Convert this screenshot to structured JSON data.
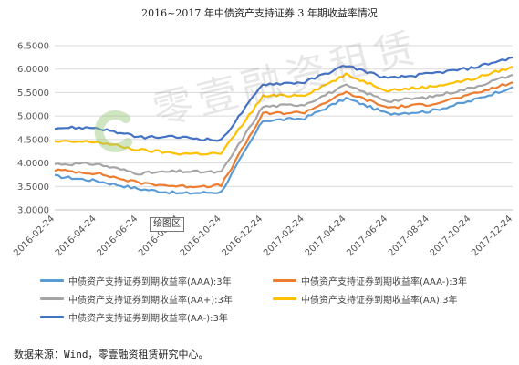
{
  "chart_data": {
    "type": "line",
    "title": "2016~2017 年中债资产支持证券 3 年期收益率情况",
    "ylim": [
      3.0,
      6.5
    ],
    "yticks": [
      "3.0000",
      "3.5000",
      "4.0000",
      "4.5000",
      "5.0000",
      "5.5000",
      "6.0000",
      "6.5000"
    ],
    "x": [
      "2016-02-24",
      "2016-04-24",
      "2016-06-24",
      "2016-08-24",
      "2016-10-24",
      "2016-12-24",
      "2017-02-24",
      "2017-04-24",
      "2017-06-24",
      "2017-08-24",
      "2017-10-24",
      "2017-12-24"
    ],
    "xtick_labels": [
      "2016-02-24",
      "2016-04-24",
      "2016-06-24",
      "2016-08-24",
      "2016-10-24",
      "2016-12-24",
      "2017-02-24",
      "2017-04-24",
      "2017-06-24",
      "2017-08-24",
      "2017-10-24",
      "2017-12-24"
    ],
    "grid": true,
    "legend_position": "bottom",
    "series": [
      {
        "name": "中债资产支持证券到期收益率(AAA):3年",
        "color": "#5b9bd5",
        "values": [
          3.72,
          3.62,
          3.45,
          3.35,
          3.38,
          4.9,
          4.95,
          5.38,
          5.05,
          5.1,
          5.32,
          5.62
        ]
      },
      {
        "name": "中债资产支持证券到期收益率(AAA-):3年",
        "color": "#ed7d31",
        "values": [
          3.85,
          3.78,
          3.58,
          3.5,
          3.52,
          5.05,
          5.08,
          5.5,
          5.18,
          5.25,
          5.45,
          5.72
        ]
      },
      {
        "name": "中债资产支持证券到期收益率(AA+):3年",
        "color": "#a5a5a5",
        "values": [
          3.98,
          3.98,
          3.78,
          3.82,
          3.8,
          5.2,
          5.25,
          5.65,
          5.32,
          5.4,
          5.6,
          5.88
        ]
      },
      {
        "name": "中债资产支持证券到期收益率(AA):3年",
        "color": "#ffc000",
        "values": [
          4.45,
          4.45,
          4.28,
          4.2,
          4.2,
          5.42,
          5.45,
          5.88,
          5.55,
          5.62,
          5.78,
          6.05
        ]
      },
      {
        "name": "中债资产支持证券到期收益率(AA-):3年",
        "color": "#4472c4",
        "values": [
          4.75,
          4.75,
          4.55,
          4.55,
          4.48,
          5.68,
          5.72,
          6.08,
          5.8,
          5.9,
          6.02,
          6.25
        ]
      }
    ]
  },
  "tooltip": "绘图区",
  "watermark": "零壹融资租赁",
  "source": "数据来源：Wind，零壹融资租赁研究中心。",
  "colors": {
    "grid": "#d9d9d9",
    "axis": "#bfbfbf"
  }
}
